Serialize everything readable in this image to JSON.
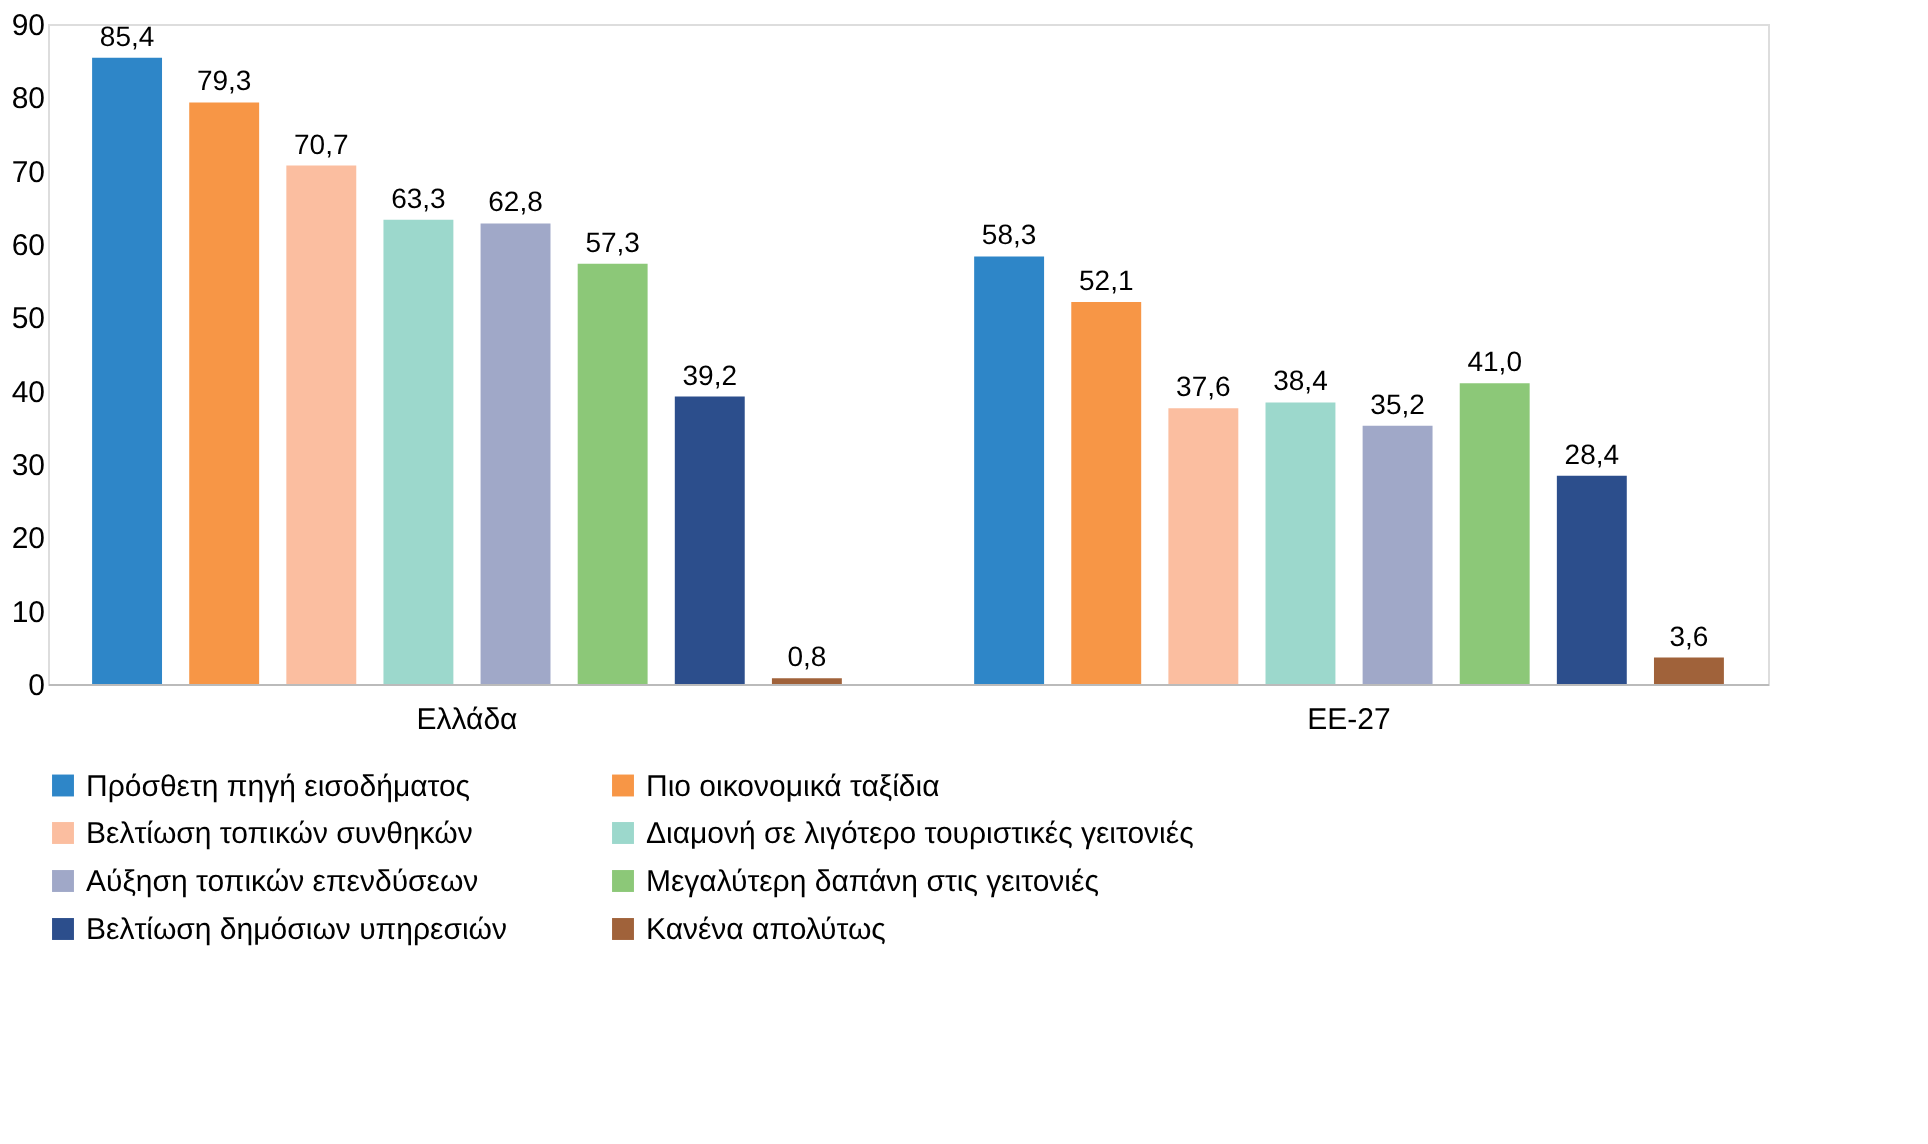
{
  "chart_data": {
    "type": "bar",
    "categories": [
      "Ελλάδα",
      "ΕΕ-27"
    ],
    "ylim": [
      0,
      90
    ],
    "yticks": [
      0,
      10,
      20,
      30,
      40,
      50,
      60,
      70,
      80,
      90
    ],
    "grid": false,
    "legend": "bottom",
    "series": [
      {
        "name": "Πρόσθετη πηγή εισοδήματος",
        "color": "#2e86c8",
        "values": [
          85.4,
          58.3
        ],
        "value_labels": [
          "85,4",
          "58,3"
        ]
      },
      {
        "name": "Πιο οικονομικά ταξίδια",
        "color": "#f79646",
        "values": [
          79.3,
          52.1
        ],
        "value_labels": [
          "79,3",
          "52,1"
        ]
      },
      {
        "name": "Βελτίωση τοπικών συνθηκών",
        "color": "#fbbea0",
        "values": [
          70.7,
          37.6
        ],
        "value_labels": [
          "70,7",
          "37,6"
        ]
      },
      {
        "name": "Διαμονή σε λιγότερο τουριστικές γειτονιές",
        "color": "#9cd8cc",
        "values": [
          63.3,
          38.4
        ],
        "value_labels": [
          "63,3",
          "38,4"
        ]
      },
      {
        "name": "Αύξηση τοπικών επενδύσεων",
        "color": "#a0a8c8",
        "values": [
          62.8,
          35.2
        ],
        "value_labels": [
          "62,8",
          "35,2"
        ]
      },
      {
        "name": "Μεγαλύτερη δαπάνη στις γειτονιές",
        "color": "#8cc878",
        "values": [
          57.3,
          41.0
        ],
        "value_labels": [
          "57,3",
          "41,0"
        ]
      },
      {
        "name": "Βελτίωση δημόσιων υπηρεσιών",
        "color": "#2c4e8c",
        "values": [
          39.2,
          28.4
        ],
        "value_labels": [
          "39,2",
          "28,4"
        ]
      },
      {
        "name": "Κανένα απολύτως",
        "color": "#a0623a",
        "values": [
          0.8,
          3.6
        ],
        "value_labels": [
          "0,8",
          "3,6"
        ]
      }
    ]
  }
}
